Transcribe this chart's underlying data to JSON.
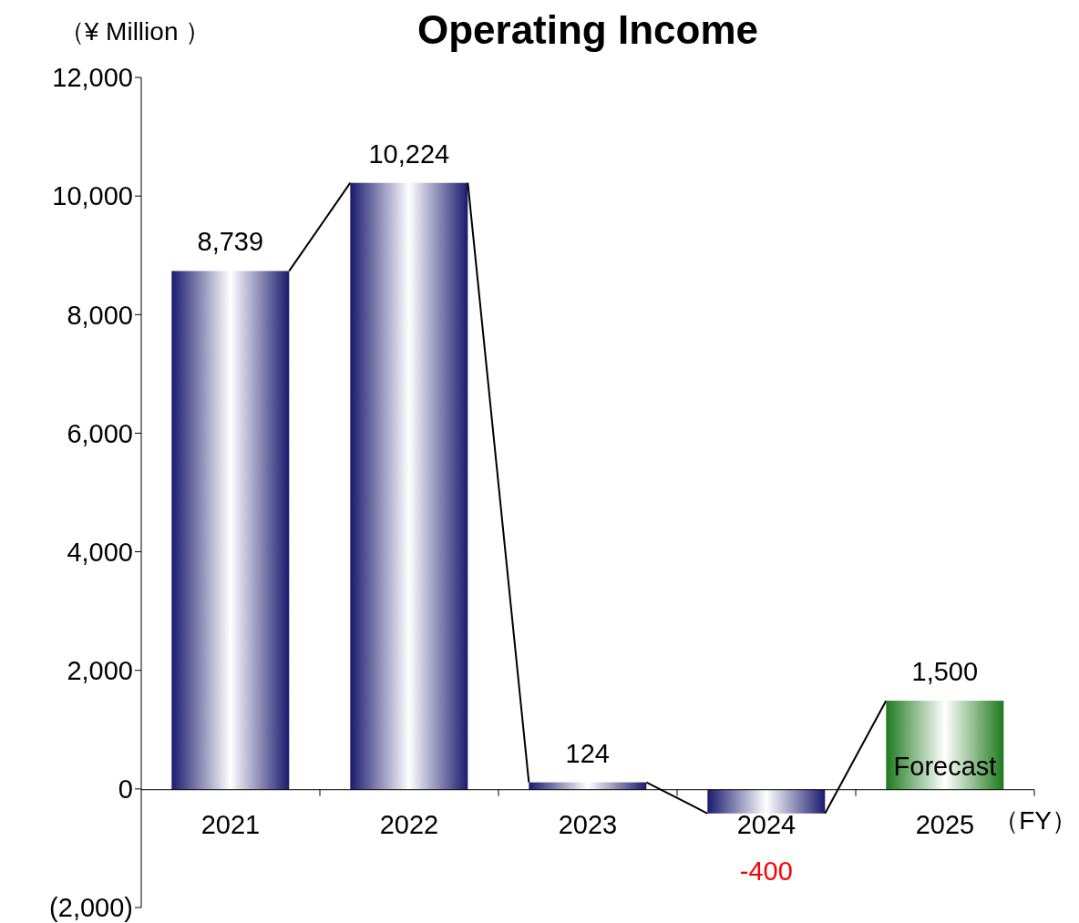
{
  "chart_data": {
    "type": "bar",
    "title": "Operating Income",
    "ylabel": "（¥ Million ）",
    "xlabel": "（FY）",
    "categories": [
      "2021",
      "2022",
      "2023",
      "2024",
      "2025"
    ],
    "values": [
      8739,
      10224,
      124,
      -400,
      1500
    ],
    "colors": [
      "#1a1a6e",
      "#1a1a6e",
      "#1a1a6e",
      "#1a1a6e",
      "#1e7a1e"
    ],
    "value_labels": [
      "8,739",
      "10,224",
      "124",
      "-400",
      "1,500"
    ],
    "annotations": [
      "Forecast"
    ],
    "ylim": [
      -2000,
      12000
    ],
    "yticks": [
      {
        "value": -2000,
        "label": "(2,000)"
      },
      0,
      {
        "value": 2000,
        "label": "2,000"
      },
      {
        "value": 4000,
        "label": "4,000"
      },
      {
        "value": 6000,
        "label": "6,000"
      },
      {
        "value": 8000,
        "label": "8,000"
      },
      {
        "value": 10000,
        "label": "10,000"
      },
      {
        "value": 12000,
        "label": "12,000"
      }
    ]
  }
}
